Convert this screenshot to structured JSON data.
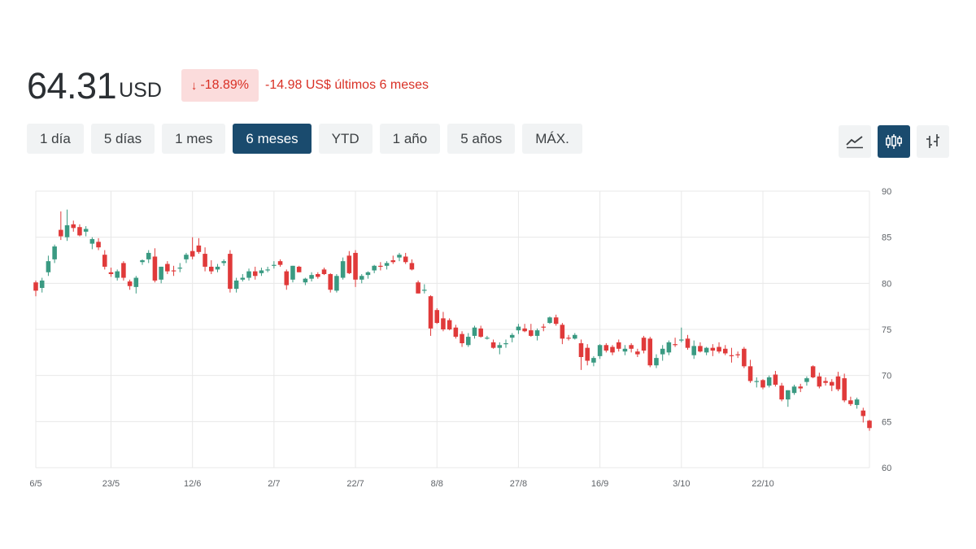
{
  "quote": {
    "price": "64.31",
    "currency": "USD",
    "change_pct": "-18.89%",
    "change_text": "-14.98 US$ últimos 6 meses",
    "down_color": "#d93025"
  },
  "ranges": [
    {
      "label": "1 día",
      "active": false
    },
    {
      "label": "5 días",
      "active": false
    },
    {
      "label": "1 mes",
      "active": false
    },
    {
      "label": "6 meses",
      "active": true
    },
    {
      "label": "YTD",
      "active": false
    },
    {
      "label": "1 año",
      "active": false
    },
    {
      "label": "5 años",
      "active": false
    },
    {
      "label": "MÁX.",
      "active": false
    }
  ],
  "chart_types": [
    {
      "name": "line-chart-icon",
      "active": false
    },
    {
      "name": "candlestick-chart-icon",
      "active": true
    },
    {
      "name": "ohlc-chart-icon",
      "active": false
    }
  ],
  "chart_data": {
    "type": "candlestick",
    "ylim": [
      60,
      90
    ],
    "yticks": [
      60,
      65,
      70,
      75,
      80,
      85,
      90
    ],
    "xticks": [
      {
        "label": "6/5",
        "index": 0
      },
      {
        "label": "23/5",
        "index": 12
      },
      {
        "label": "12/6",
        "index": 25
      },
      {
        "label": "2/7",
        "index": 38
      },
      {
        "label": "22/7",
        "index": 51
      },
      {
        "label": "8/8",
        "index": 64
      },
      {
        "label": "27/8",
        "index": 77
      },
      {
        "label": "16/9",
        "index": 90
      },
      {
        "label": "3/10",
        "index": 103
      },
      {
        "label": "22/10",
        "index": 116
      }
    ],
    "up_color": "#3a9a82",
    "down_color": "#e03a3a",
    "grid": true,
    "candles": [
      [
        80.1,
        80.3,
        78.6,
        79.2
      ],
      [
        79.5,
        80.6,
        79.0,
        80.3
      ],
      [
        81.2,
        83.0,
        80.8,
        82.4
      ],
      [
        82.6,
        84.2,
        82.2,
        84.0
      ],
      [
        85.8,
        87.8,
        84.7,
        85.1
      ],
      [
        85.0,
        88.0,
        84.6,
        86.3
      ],
      [
        86.4,
        86.8,
        85.6,
        86.0
      ],
      [
        86.1,
        86.4,
        85.1,
        85.2
      ],
      [
        85.6,
        86.2,
        85.1,
        85.9
      ],
      [
        84.3,
        85.0,
        83.7,
        84.8
      ],
      [
        84.5,
        84.9,
        83.6,
        83.9
      ],
      [
        83.1,
        83.6,
        81.5,
        81.8
      ],
      [
        81.2,
        81.7,
        80.7,
        81.0
      ],
      [
        80.6,
        81.5,
        80.3,
        81.3
      ],
      [
        82.2,
        82.4,
        80.3,
        80.6
      ],
      [
        80.2,
        80.4,
        79.3,
        79.7
      ],
      [
        79.6,
        80.8,
        78.9,
        80.6
      ],
      [
        82.3,
        82.6,
        82.0,
        82.5
      ],
      [
        82.6,
        83.6,
        82.2,
        83.3
      ],
      [
        82.9,
        83.8,
        80.1,
        80.3
      ],
      [
        80.4,
        81.8,
        80.0,
        81.8
      ],
      [
        82.1,
        82.4,
        81.0,
        81.3
      ],
      [
        81.4,
        81.9,
        80.8,
        81.3
      ],
      [
        81.6,
        82.2,
        81.2,
        81.7
      ],
      [
        82.6,
        83.3,
        82.2,
        83.1
      ],
      [
        83.5,
        85.0,
        82.6,
        82.9
      ],
      [
        84.1,
        84.9,
        83.2,
        83.4
      ],
      [
        83.2,
        83.9,
        81.3,
        81.8
      ],
      [
        81.8,
        82.5,
        81.0,
        81.3
      ],
      [
        81.5,
        82.1,
        81.2,
        81.8
      ],
      [
        82.2,
        82.6,
        81.9,
        82.4
      ],
      [
        83.2,
        83.6,
        79.0,
        79.4
      ],
      [
        79.4,
        80.6,
        79.0,
        80.3
      ],
      [
        80.4,
        81.0,
        80.2,
        80.6
      ],
      [
        80.6,
        81.6,
        80.3,
        81.3
      ],
      [
        81.3,
        81.8,
        80.4,
        80.8
      ],
      [
        81.1,
        81.7,
        80.8,
        81.4
      ],
      [
        81.5,
        81.8,
        81.2,
        81.5
      ],
      [
        81.9,
        82.4,
        81.6,
        82.0
      ],
      [
        82.4,
        82.6,
        81.8,
        82.0
      ],
      [
        81.3,
        81.5,
        79.3,
        79.8
      ],
      [
        80.4,
        81.9,
        80.1,
        81.9
      ],
      [
        81.8,
        81.9,
        81.2,
        81.2
      ],
      [
        80.1,
        80.6,
        79.8,
        80.5
      ],
      [
        80.5,
        81.2,
        80.2,
        80.9
      ],
      [
        81.0,
        81.2,
        80.5,
        80.7
      ],
      [
        81.5,
        81.7,
        80.9,
        81.0
      ],
      [
        81.0,
        81.1,
        79.0,
        79.3
      ],
      [
        79.2,
        81.0,
        79.0,
        80.8
      ],
      [
        80.6,
        82.8,
        80.4,
        82.4
      ],
      [
        83.0,
        83.5,
        81.0,
        81.1
      ],
      [
        83.3,
        83.6,
        79.6,
        80.4
      ],
      [
        80.4,
        81.0,
        80.0,
        80.8
      ],
      [
        80.9,
        81.3,
        80.5,
        81.2
      ],
      [
        81.4,
        82.0,
        81.1,
        81.9
      ],
      [
        81.9,
        82.3,
        81.4,
        81.8
      ],
      [
        81.9,
        82.4,
        81.5,
        82.2
      ],
      [
        82.5,
        83.0,
        82.1,
        82.3
      ],
      [
        82.8,
        83.3,
        82.4,
        83.1
      ],
      [
        82.9,
        83.3,
        82.1,
        82.3
      ],
      [
        82.2,
        82.6,
        81.4,
        81.5
      ],
      [
        80.1,
        80.3,
        78.9,
        78.9
      ],
      [
        79.3,
        79.9,
        78.9,
        79.3
      ],
      [
        78.6,
        78.7,
        74.3,
        75.1
      ],
      [
        77.1,
        77.3,
        75.6,
        75.7
      ],
      [
        76.2,
        76.9,
        74.8,
        75.0
      ],
      [
        76.0,
        76.2,
        74.9,
        75.0
      ],
      [
        75.2,
        75.5,
        74.0,
        74.2
      ],
      [
        74.5,
        74.8,
        73.1,
        73.5
      ],
      [
        73.3,
        74.6,
        73.1,
        74.2
      ],
      [
        74.3,
        75.4,
        74.0,
        75.2
      ],
      [
        75.1,
        75.4,
        74.1,
        74.2
      ],
      [
        74.0,
        74.3,
        73.9,
        74.1
      ],
      [
        73.6,
        73.9,
        72.9,
        73.0
      ],
      [
        73.0,
        73.6,
        72.3,
        73.3
      ],
      [
        73.5,
        73.9,
        73.0,
        73.5
      ],
      [
        74.1,
        74.6,
        73.6,
        74.4
      ],
      [
        74.9,
        75.6,
        74.5,
        75.3
      ],
      [
        75.1,
        75.6,
        74.7,
        74.8
      ],
      [
        74.9,
        75.6,
        74.2,
        74.3
      ],
      [
        74.3,
        75.1,
        73.8,
        74.9
      ],
      [
        75.3,
        75.6,
        74.8,
        75.2
      ],
      [
        75.7,
        76.4,
        75.6,
        76.3
      ],
      [
        76.3,
        76.6,
        75.4,
        75.6
      ],
      [
        75.5,
        75.7,
        73.4,
        74.0
      ],
      [
        74.1,
        74.4,
        73.8,
        74.0
      ],
      [
        74.0,
        74.6,
        73.9,
        74.4
      ],
      [
        73.5,
        73.9,
        70.6,
        72.0
      ],
      [
        73.0,
        73.4,
        71.1,
        71.6
      ],
      [
        71.4,
        72.1,
        71.0,
        71.9
      ],
      [
        72.1,
        73.4,
        71.8,
        73.3
      ],
      [
        73.3,
        73.5,
        72.5,
        72.7
      ],
      [
        73.1,
        73.3,
        72.2,
        72.5
      ],
      [
        73.6,
        73.9,
        72.6,
        72.9
      ],
      [
        72.6,
        73.3,
        72.2,
        72.9
      ],
      [
        73.3,
        73.5,
        72.5,
        72.9
      ],
      [
        72.6,
        72.9,
        72.0,
        72.3
      ],
      [
        74.1,
        74.3,
        72.4,
        72.7
      ],
      [
        74.0,
        74.2,
        70.9,
        71.1
      ],
      [
        71.1,
        72.3,
        70.8,
        71.9
      ],
      [
        72.3,
        73.3,
        71.6,
        72.9
      ],
      [
        72.5,
        73.8,
        72.2,
        73.6
      ],
      [
        73.4,
        74.1,
        73.1,
        73.3
      ],
      [
        73.8,
        75.2,
        73.6,
        73.9
      ],
      [
        74.0,
        74.4,
        72.8,
        73.0
      ],
      [
        72.2,
        73.8,
        71.8,
        73.2
      ],
      [
        73.2,
        73.6,
        72.5,
        72.6
      ],
      [
        72.5,
        73.1,
        72.2,
        73.0
      ],
      [
        73.0,
        73.4,
        72.1,
        72.7
      ],
      [
        73.1,
        73.6,
        72.4,
        72.6
      ],
      [
        72.9,
        73.3,
        72.2,
        72.4
      ],
      [
        72.2,
        73.0,
        71.4,
        72.1
      ],
      [
        72.3,
        72.6,
        71.9,
        72.2
      ],
      [
        72.9,
        73.1,
        70.8,
        71.0
      ],
      [
        71.0,
        71.7,
        69.2,
        69.4
      ],
      [
        69.3,
        69.8,
        68.7,
        69.4
      ],
      [
        69.5,
        69.6,
        68.5,
        68.7
      ],
      [
        68.9,
        70.0,
        68.7,
        69.8
      ],
      [
        70.1,
        70.5,
        68.8,
        69.0
      ],
      [
        68.9,
        69.2,
        67.2,
        67.4
      ],
      [
        67.4,
        68.4,
        66.6,
        68.4
      ],
      [
        68.1,
        69.0,
        67.9,
        68.8
      ],
      [
        68.8,
        69.1,
        68.2,
        68.6
      ],
      [
        69.3,
        69.9,
        68.9,
        69.7
      ],
      [
        71.0,
        71.1,
        69.7,
        69.8
      ],
      [
        69.9,
        70.3,
        68.6,
        68.8
      ],
      [
        69.4,
        69.8,
        68.9,
        69.2
      ],
      [
        69.3,
        69.6,
        68.3,
        68.9
      ],
      [
        69.9,
        70.4,
        68.3,
        68.5
      ],
      [
        69.7,
        70.2,
        67.1,
        67.3
      ],
      [
        67.3,
        67.7,
        66.7,
        66.9
      ],
      [
        66.8,
        67.6,
        66.4,
        67.4
      ],
      [
        66.2,
        66.5,
        64.9,
        65.6
      ],
      [
        65.1,
        65.2,
        64.0,
        64.3
      ]
    ]
  }
}
